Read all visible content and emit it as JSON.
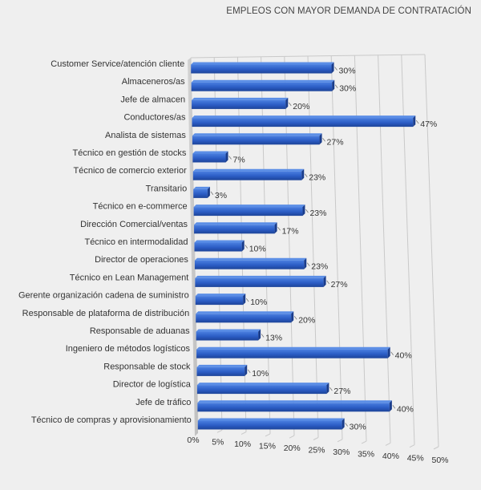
{
  "chart_data": {
    "type": "bar",
    "orientation": "horizontal",
    "title": "EMPLEOS CON MAYOR DEMANDA DE CONTRATACIÓN",
    "categories": [
      "Customer Service/atención cliente",
      "Almaceneros/as",
      "Jefe de almacen",
      "Conductores/as",
      "Analista de sistemas",
      "Técnico en gestión de stocks",
      "Técnico de comercio exterior",
      "Transitario",
      "Técnico en e-commerce",
      "Dirección Comercial/ventas",
      "Técnico en intermodalidad",
      "Director de operaciones",
      "Técnico en Lean Management",
      "Gerente organización cadena de suministro",
      "Responsable de plataforma de distribución",
      "Responsable de aduanas",
      "Ingeniero de métodos logísticos",
      "Responsable de stock",
      "Director de logística",
      "Jefe de tráfico",
      "Técnico de compras y aprovisionamiento"
    ],
    "values": [
      30,
      30,
      20,
      47,
      27,
      7,
      23,
      3,
      23,
      17,
      10,
      23,
      27,
      10,
      20,
      13,
      40,
      10,
      27,
      40,
      30
    ],
    "value_labels": [
      "30%",
      "30%",
      "20%",
      "47%",
      "27%",
      "7%",
      "23%",
      "3%",
      "23%",
      "17%",
      "10%",
      "23%",
      "27%",
      "10%",
      "20%",
      "13%",
      "40%",
      "10%",
      "27%",
      "40%",
      "30%"
    ],
    "x_ticks": [
      "0%",
      "5%",
      "10%",
      "15%",
      "20%",
      "25%",
      "30%",
      "35%",
      "40%",
      "45%",
      "50%"
    ],
    "xlim": [
      0,
      50
    ],
    "grid": true,
    "bar_color": "#2b5cc4"
  }
}
